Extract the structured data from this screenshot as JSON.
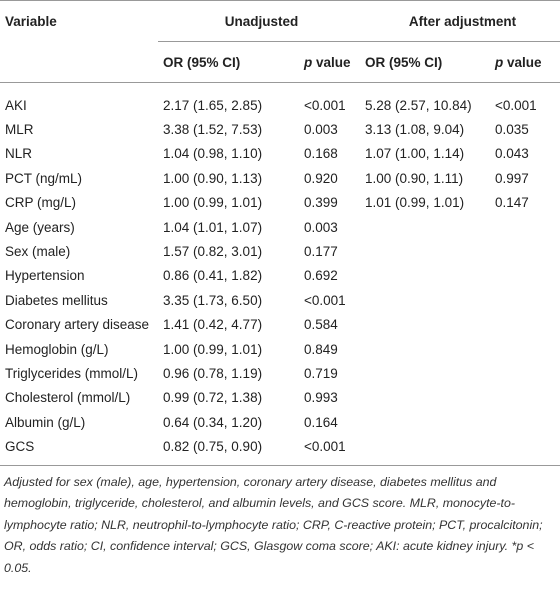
{
  "table": {
    "header": {
      "variable": "Variable",
      "group1": "Unadjusted",
      "group2": "After adjustment"
    },
    "subheader": [
      {
        "or": "OR (95% CI)",
        "p": "p",
        "rest": " value"
      },
      {
        "or": "OR (95% CI)",
        "p": "p",
        "rest": " value"
      }
    ],
    "rows": [
      {
        "variable": "AKI",
        "or": "2.17 (1.65, 2.85)",
        "p": "<0.001",
        "adj_or": "5.28 (2.57, 10.84)",
        "adj_p": "<0.001"
      },
      {
        "variable": "MLR",
        "or": "3.38 (1.52, 7.53)",
        "p": "0.003",
        "adj_or": "3.13 (1.08, 9.04)",
        "adj_p": "0.035"
      },
      {
        "variable": "NLR",
        "or": "1.04 (0.98, 1.10)",
        "p": "0.168",
        "adj_or": "1.07 (1.00, 1.14)",
        "adj_p": "0.043"
      },
      {
        "variable": "PCT (ng/mL)",
        "or": "1.00 (0.90, 1.13)",
        "p": "0.920",
        "adj_or": "1.00 (0.90, 1.11)",
        "adj_p": "0.997"
      },
      {
        "variable": "CRP (mg/L)",
        "or": "1.00 (0.99, 1.01)",
        "p": "0.399",
        "adj_or": "1.01 (0.99, 1.01)",
        "adj_p": "0.147"
      },
      {
        "variable": "Age (years)",
        "or": "1.04 (1.01, 1.07)",
        "p": "0.003"
      },
      {
        "variable": "Sex (male)",
        "or": "1.57 (0.82, 3.01)",
        "p": "0.177"
      },
      {
        "variable": "Hypertension",
        "or": "0.86 (0.41, 1.82)",
        "p": "0.692"
      },
      {
        "variable": "Diabetes mellitus",
        "or": "3.35 (1.73, 6.50)",
        "p": "<0.001"
      },
      {
        "variable": "Coronary artery disease",
        "or": "1.41 (0.42, 4.77)",
        "p": "0.584"
      },
      {
        "variable": "Hemoglobin (g/L)",
        "or": "1.00 (0.99, 1.01)",
        "p": "0.849"
      },
      {
        "variable": "Triglycerides (mmol/L)",
        "or": "0.96 (0.78, 1.19)",
        "p": "0.719"
      },
      {
        "variable": "Cholesterol (mmol/L)",
        "or": "0.99 (0.72, 1.38)",
        "p": "0.993"
      },
      {
        "variable": "Albumin (g/L)",
        "or": "0.64 (0.34, 1.20)",
        "p": "0.164"
      },
      {
        "variable": "GCS",
        "or": "0.82 (0.75, 0.90)",
        "p": "<0.001"
      }
    ],
    "footnote": "Adjusted for sex (male), age, hypertension, coronary artery disease, diabetes mellitus and hemoglobin, triglyceride, cholesterol, and albumin levels, and GCS score. MLR, monocyte-to-lymphocyte ratio; NLR, neutrophil-to-lymphocyte ratio; CRP, C-reactive protein; PCT, procalcitonin; OR, odds ratio; CI, confidence interval; GCS, Glasgow coma score; AKI: acute kidney injury. *p < 0.05."
  }
}
